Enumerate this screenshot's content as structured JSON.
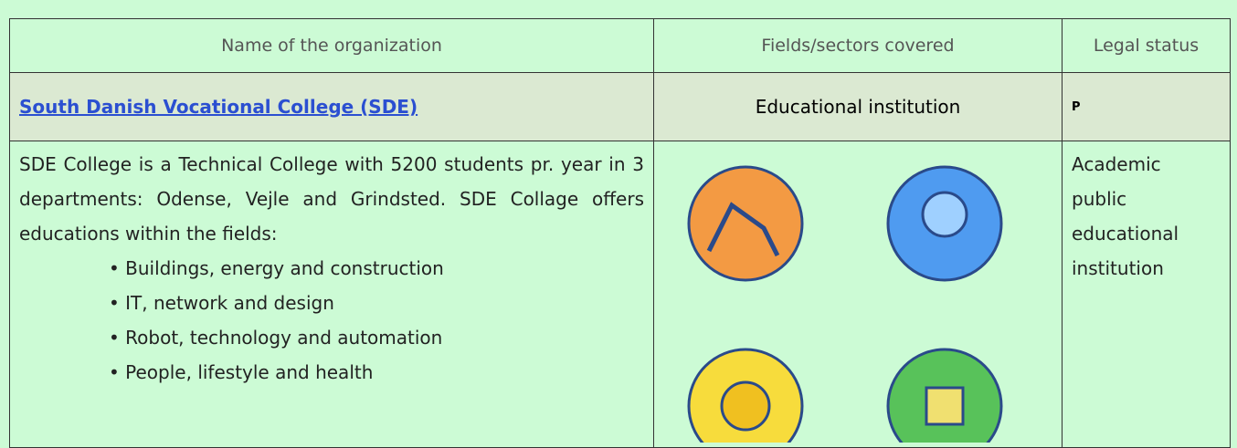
{
  "table": {
    "header": [
      "Name of the organization",
      "Fields/sectors covered",
      "Legal status"
    ],
    "org": {
      "name": "South Danish Vocational College (SDE)",
      "field": "Educational institution",
      "status": "P"
    },
    "description": {
      "text": "SDE College is a Technical College with 5200 students pr. year in 3 departments: Odense, Vejle and Grindsted. SDE Collage offers educations within the fields:",
      "bullets": [
        "Buildings, energy and construction",
        "IT, network and design",
        "Robot, technology and automation",
        "People, lifestyle and health"
      ],
      "legal": [
        "Academic",
        "public",
        "educational",
        "institution"
      ]
    }
  }
}
